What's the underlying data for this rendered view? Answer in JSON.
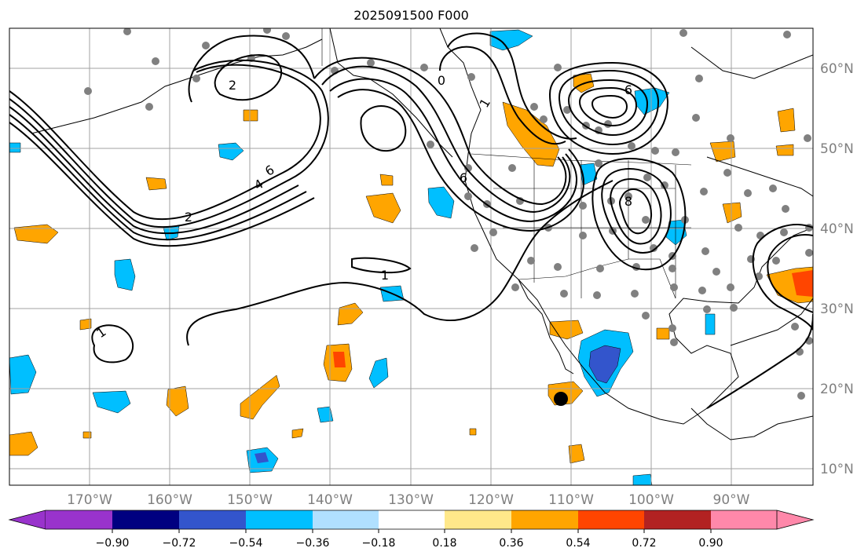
{
  "title": "2025091500 F000",
  "longitude_labels": [
    "170°W",
    "160°W",
    "150°W",
    "140°W",
    "130°W",
    "120°W",
    "110°W",
    "100°W",
    "90°W"
  ],
  "latitude_labels": [
    "60°N",
    "50°N",
    "40°N",
    "30°N",
    "20°N",
    "10°N"
  ],
  "contour_labels": [
    "1",
    "1",
    "2",
    "4",
    "6",
    "0",
    "6",
    "2",
    "8",
    "6",
    "1"
  ],
  "colorbar": {
    "tick_labels": [
      "−0.90",
      "−0.72",
      "−0.54",
      "−0.36",
      "−0.18",
      "0.18",
      "0.36",
      "0.54",
      "0.72",
      "0.90"
    ],
    "levels": [
      -0.9,
      -0.72,
      -0.54,
      -0.36,
      -0.18,
      0.18,
      0.36,
      0.54,
      0.72,
      0.9
    ],
    "colors": [
      "#9933cc",
      "#000080",
      "#3355cc",
      "#00bfff",
      "#b0e0ff",
      "#ffffff",
      "#ffe88a",
      "#ffa500",
      "#ff4500",
      "#b22222",
      "#ff88aa"
    ]
  },
  "map_extent": {
    "lon_min": -180,
    "lon_max": -80,
    "lat_min": 8,
    "lat_max": 65
  }
}
